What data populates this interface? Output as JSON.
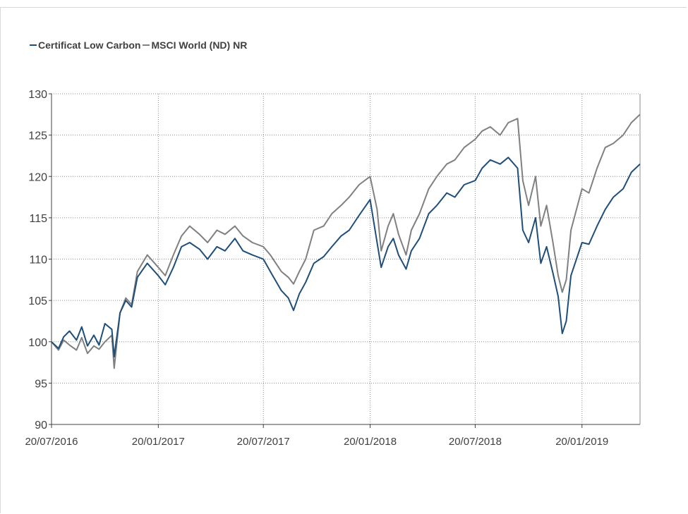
{
  "chart_data": {
    "type": "line",
    "title": "",
    "xlabel": "",
    "ylabel": "",
    "ylim": [
      90,
      130
    ],
    "yticks": [
      90,
      95,
      100,
      105,
      110,
      115,
      120,
      125,
      130
    ],
    "xlim": [
      "2016-07-20",
      "2019-04-30"
    ],
    "xtick_labels": [
      "20/07/2016",
      "20/01/2017",
      "20/07/2017",
      "20/01/2018",
      "20/07/2018",
      "20/01/2019"
    ],
    "xtick_dates": [
      "2016-07-20",
      "2017-01-20",
      "2017-07-20",
      "2018-01-20",
      "2018-07-20",
      "2019-01-20"
    ],
    "grid": "dotted",
    "legend_position": "top-left",
    "series": [
      {
        "name": "Certificat Low Carbon",
        "color": "#1f4e79",
        "x": [
          "2016-07-20",
          "2016-08-01",
          "2016-08-10",
          "2016-08-20",
          "2016-09-01",
          "2016-09-10",
          "2016-09-20",
          "2016-10-01",
          "2016-10-10",
          "2016-10-20",
          "2016-11-01",
          "2016-11-05",
          "2016-11-15",
          "2016-11-25",
          "2016-12-05",
          "2016-12-15",
          "2017-01-01",
          "2017-01-20",
          "2017-02-01",
          "2017-02-15",
          "2017-03-01",
          "2017-03-15",
          "2017-04-01",
          "2017-04-15",
          "2017-05-01",
          "2017-05-15",
          "2017-06-01",
          "2017-06-15",
          "2017-07-01",
          "2017-07-20",
          "2017-08-01",
          "2017-08-20",
          "2017-09-01",
          "2017-09-10",
          "2017-09-20",
          "2017-10-01",
          "2017-10-15",
          "2017-11-01",
          "2017-11-15",
          "2017-12-01",
          "2017-12-15",
          "2018-01-01",
          "2018-01-20",
          "2018-02-01",
          "2018-02-08",
          "2018-02-20",
          "2018-03-01",
          "2018-03-10",
          "2018-03-23",
          "2018-04-01",
          "2018-04-15",
          "2018-05-01",
          "2018-05-15",
          "2018-06-01",
          "2018-06-15",
          "2018-07-01",
          "2018-07-20",
          "2018-08-01",
          "2018-08-15",
          "2018-09-01",
          "2018-09-15",
          "2018-10-01",
          "2018-10-10",
          "2018-10-20",
          "2018-11-01",
          "2018-11-10",
          "2018-11-20",
          "2018-12-01",
          "2018-12-10",
          "2018-12-17",
          "2018-12-24",
          "2019-01-01",
          "2019-01-20",
          "2019-02-01",
          "2019-02-15",
          "2019-03-01",
          "2019-03-15",
          "2019-04-01",
          "2019-04-15",
          "2019-04-30"
        ],
        "values": [
          100.0,
          99.2,
          100.6,
          101.3,
          100.2,
          101.8,
          99.5,
          100.8,
          99.6,
          102.2,
          101.5,
          98.2,
          103.5,
          105.0,
          104.2,
          107.8,
          109.5,
          108.0,
          106.9,
          109.0,
          111.5,
          112.0,
          111.2,
          110.0,
          111.5,
          111.0,
          112.5,
          111.0,
          110.5,
          110.0,
          108.5,
          106.2,
          105.3,
          103.8,
          105.8,
          107.2,
          109.5,
          110.3,
          111.5,
          112.8,
          113.5,
          115.3,
          117.2,
          112.0,
          109.0,
          111.5,
          112.5,
          110.5,
          108.8,
          111.0,
          112.5,
          115.5,
          116.5,
          118.0,
          117.5,
          119.0,
          119.5,
          121.0,
          122.0,
          121.5,
          122.3,
          121.0,
          113.5,
          112.0,
          115.0,
          109.5,
          111.5,
          108.3,
          105.5,
          101.0,
          102.5,
          108.0,
          112.0,
          111.8,
          114.0,
          116.0,
          117.5,
          118.5,
          120.5,
          121.5
        ]
      },
      {
        "name": "MSCI World (ND) NR",
        "color": "#808080",
        "x": [
          "2016-07-20",
          "2016-08-01",
          "2016-08-10",
          "2016-08-20",
          "2016-09-01",
          "2016-09-10",
          "2016-09-20",
          "2016-10-01",
          "2016-10-10",
          "2016-10-20",
          "2016-11-01",
          "2016-11-05",
          "2016-11-15",
          "2016-11-25",
          "2016-12-05",
          "2016-12-15",
          "2017-01-01",
          "2017-01-20",
          "2017-02-01",
          "2017-02-15",
          "2017-03-01",
          "2017-03-15",
          "2017-04-01",
          "2017-04-15",
          "2017-05-01",
          "2017-05-15",
          "2017-06-01",
          "2017-06-15",
          "2017-07-01",
          "2017-07-20",
          "2017-08-01",
          "2017-08-20",
          "2017-09-01",
          "2017-09-10",
          "2017-09-20",
          "2017-10-01",
          "2017-10-15",
          "2017-11-01",
          "2017-11-15",
          "2017-12-01",
          "2017-12-15",
          "2018-01-01",
          "2018-01-20",
          "2018-02-01",
          "2018-02-08",
          "2018-02-20",
          "2018-03-01",
          "2018-03-10",
          "2018-03-23",
          "2018-04-01",
          "2018-04-15",
          "2018-05-01",
          "2018-05-15",
          "2018-06-01",
          "2018-06-15",
          "2018-07-01",
          "2018-07-20",
          "2018-08-01",
          "2018-08-15",
          "2018-09-01",
          "2018-09-15",
          "2018-10-01",
          "2018-10-10",
          "2018-10-20",
          "2018-11-01",
          "2018-11-10",
          "2018-11-20",
          "2018-12-01",
          "2018-12-10",
          "2018-12-17",
          "2018-12-24",
          "2019-01-01",
          "2019-01-20",
          "2019-02-01",
          "2019-02-15",
          "2019-03-01",
          "2019-03-15",
          "2019-04-01",
          "2019-04-15",
          "2019-04-30"
        ],
        "values": [
          100.0,
          99.0,
          100.2,
          99.6,
          99.0,
          100.5,
          98.6,
          99.5,
          99.1,
          100.0,
          100.8,
          96.8,
          103.5,
          105.3,
          104.5,
          108.5,
          110.5,
          109.0,
          108.0,
          110.5,
          112.8,
          114.0,
          113.0,
          112.0,
          113.5,
          113.0,
          114.0,
          112.8,
          112.0,
          111.5,
          110.5,
          108.5,
          107.8,
          107.0,
          108.5,
          110.0,
          113.5,
          114.0,
          115.5,
          116.5,
          117.5,
          119.0,
          120.0,
          116.0,
          111.0,
          114.0,
          115.5,
          113.0,
          110.5,
          113.5,
          115.5,
          118.5,
          120.0,
          121.5,
          122.0,
          123.5,
          124.5,
          125.5,
          126.0,
          125.0,
          126.5,
          127.0,
          119.5,
          116.5,
          120.0,
          114.0,
          116.5,
          112.0,
          108.0,
          106.0,
          107.5,
          113.5,
          118.5,
          118.0,
          121.0,
          123.5,
          124.0,
          125.0,
          126.5,
          127.5
        ]
      }
    ]
  }
}
